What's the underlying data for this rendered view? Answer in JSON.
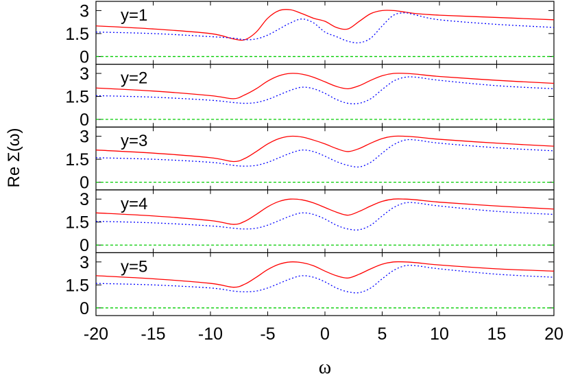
{
  "chart_data": {
    "type": "line",
    "xlabel": "ω",
    "ylabel": "Re Σ(ω)",
    "xlim": [
      -20,
      20
    ],
    "ylim": [
      -0.5,
      3.6
    ],
    "x_ticks": [
      "-20",
      "-15",
      "-10",
      "-5",
      "0",
      "5",
      "10",
      "15",
      "20"
    ],
    "x_tick_values": [
      -20,
      -15,
      -10,
      -5,
      0,
      5,
      10,
      15,
      20
    ],
    "y_ticks": [
      "0",
      "1.5",
      "3"
    ],
    "y_tick_values": [
      0,
      1.5,
      3
    ],
    "series_styles": [
      {
        "color": "#ff0000",
        "dash": "solid"
      },
      {
        "color": "#0000ff",
        "dash": "dotted"
      },
      {
        "color": "#00cc00",
        "dash": "dashed"
      }
    ],
    "panels": [
      {
        "label": "y=1",
        "x": [
          -20,
          -15,
          -10,
          -8,
          -7,
          -6,
          -5,
          -4,
          -3,
          -2,
          -1,
          0,
          1,
          2,
          3,
          4,
          5,
          6,
          7,
          8,
          10,
          15,
          20
        ],
        "series": [
          {
            "values": [
              2.0,
              1.8,
              1.5,
              1.15,
              1.1,
              1.6,
              2.5,
              3.0,
              3.05,
              2.8,
              2.5,
              2.3,
              1.9,
              1.8,
              2.3,
              2.8,
              3.0,
              3.0,
              2.9,
              2.8,
              2.7,
              2.55,
              2.4
            ]
          },
          {
            "values": [
              1.6,
              1.5,
              1.3,
              1.2,
              1.1,
              1.15,
              1.4,
              1.8,
              2.2,
              2.45,
              2.2,
              1.6,
              1.3,
              1.0,
              0.9,
              1.2,
              2.0,
              2.7,
              2.85,
              2.7,
              2.4,
              2.1,
              1.9
            ]
          },
          {
            "values": [
              0,
              0,
              0,
              0,
              0,
              0,
              0,
              0,
              0,
              0,
              0,
              0,
              0,
              0,
              0,
              0,
              0,
              0,
              0,
              0,
              0,
              0,
              0
            ]
          }
        ]
      },
      {
        "label": "y=2",
        "x": [
          -20,
          -15,
          -10,
          -8,
          -7,
          -6,
          -5,
          -4,
          -3,
          -2,
          -1,
          0,
          1,
          2,
          3,
          4,
          5,
          6,
          7,
          8,
          10,
          15,
          20
        ],
        "series": [
          {
            "values": [
              2.05,
              1.85,
              1.55,
              1.35,
              1.6,
              2.0,
              2.5,
              2.85,
              3.0,
              2.95,
              2.75,
              2.45,
              2.15,
              2.0,
              2.2,
              2.55,
              2.85,
              3.0,
              3.0,
              2.95,
              2.8,
              2.55,
              2.35
            ]
          },
          {
            "values": [
              1.55,
              1.45,
              1.25,
              1.1,
              1.05,
              1.1,
              1.3,
              1.6,
              1.9,
              2.1,
              2.0,
              1.7,
              1.3,
              1.05,
              1.05,
              1.35,
              1.95,
              2.5,
              2.75,
              2.75,
              2.55,
              2.2,
              2.0
            ]
          },
          {
            "values": [
              0,
              0,
              0,
              0,
              0,
              0,
              0,
              0,
              0,
              0,
              0,
              0,
              0,
              0,
              0,
              0,
              0,
              0,
              0,
              0,
              0,
              0,
              0
            ]
          }
        ]
      },
      {
        "label": "y=3",
        "x": [
          -20,
          -15,
          -10,
          -8,
          -7,
          -6,
          -5,
          -4,
          -3,
          -2,
          -1,
          0,
          1,
          2,
          3,
          4,
          5,
          6,
          7,
          8,
          10,
          15,
          20
        ],
        "series": [
          {
            "values": [
              2.1,
              1.9,
              1.6,
              1.35,
              1.55,
              2.0,
              2.5,
              2.85,
              3.0,
              2.95,
              2.75,
              2.5,
              2.2,
              2.0,
              2.2,
              2.55,
              2.85,
              3.0,
              3.0,
              2.95,
              2.8,
              2.55,
              2.35
            ]
          },
          {
            "values": [
              1.6,
              1.5,
              1.3,
              1.1,
              1.05,
              1.1,
              1.3,
              1.6,
              1.9,
              2.1,
              2.0,
              1.7,
              1.35,
              1.1,
              1.0,
              1.3,
              1.9,
              2.45,
              2.75,
              2.75,
              2.55,
              2.25,
              2.05
            ]
          },
          {
            "values": [
              0,
              0,
              0,
              0,
              0,
              0,
              0,
              0,
              0,
              0,
              0,
              0,
              0,
              0,
              0,
              0,
              0,
              0,
              0,
              0,
              0,
              0,
              0
            ]
          }
        ]
      },
      {
        "label": "y=4",
        "x": [
          -20,
          -15,
          -10,
          -8,
          -7,
          -6,
          -5,
          -4,
          -3,
          -2,
          -1,
          0,
          1,
          2,
          3,
          4,
          5,
          6,
          7,
          8,
          10,
          15,
          20
        ],
        "series": [
          {
            "values": [
              2.1,
              1.9,
              1.6,
              1.35,
              1.55,
              2.0,
              2.5,
              2.85,
              3.0,
              2.95,
              2.75,
              2.45,
              2.15,
              1.95,
              2.2,
              2.55,
              2.85,
              3.0,
              3.0,
              2.95,
              2.8,
              2.55,
              2.35
            ]
          },
          {
            "values": [
              1.55,
              1.45,
              1.25,
              1.1,
              1.05,
              1.1,
              1.3,
              1.6,
              1.9,
              2.1,
              2.0,
              1.7,
              1.3,
              1.05,
              1.0,
              1.3,
              1.9,
              2.45,
              2.75,
              2.75,
              2.55,
              2.2,
              2.0
            ]
          },
          {
            "values": [
              0,
              0,
              0,
              0,
              0,
              0,
              0,
              0,
              0,
              0,
              0,
              0,
              0,
              0,
              0,
              0,
              0,
              0,
              0,
              0,
              0,
              0,
              0
            ]
          }
        ]
      },
      {
        "label": "y=5",
        "x": [
          -20,
          -15,
          -10,
          -8,
          -7,
          -6,
          -5,
          -4,
          -3,
          -2,
          -1,
          0,
          1,
          2,
          3,
          4,
          5,
          6,
          7,
          8,
          10,
          15,
          20
        ],
        "series": [
          {
            "values": [
              2.1,
              1.9,
              1.6,
              1.35,
              1.55,
              2.0,
              2.5,
              2.85,
              3.0,
              2.95,
              2.75,
              2.4,
              2.1,
              1.95,
              2.2,
              2.55,
              2.85,
              3.0,
              3.0,
              2.95,
              2.8,
              2.55,
              2.4
            ]
          },
          {
            "values": [
              1.6,
              1.5,
              1.3,
              1.1,
              1.05,
              1.1,
              1.3,
              1.6,
              1.9,
              2.1,
              2.0,
              1.7,
              1.3,
              1.05,
              1.0,
              1.3,
              1.9,
              2.45,
              2.75,
              2.75,
              2.55,
              2.2,
              2.0
            ]
          },
          {
            "values": [
              0,
              0,
              0,
              0,
              0,
              0,
              0,
              0,
              0,
              0,
              0,
              0,
              0,
              0,
              0,
              0,
              0,
              0,
              0,
              0,
              0,
              0,
              0
            ]
          }
        ]
      }
    ]
  }
}
